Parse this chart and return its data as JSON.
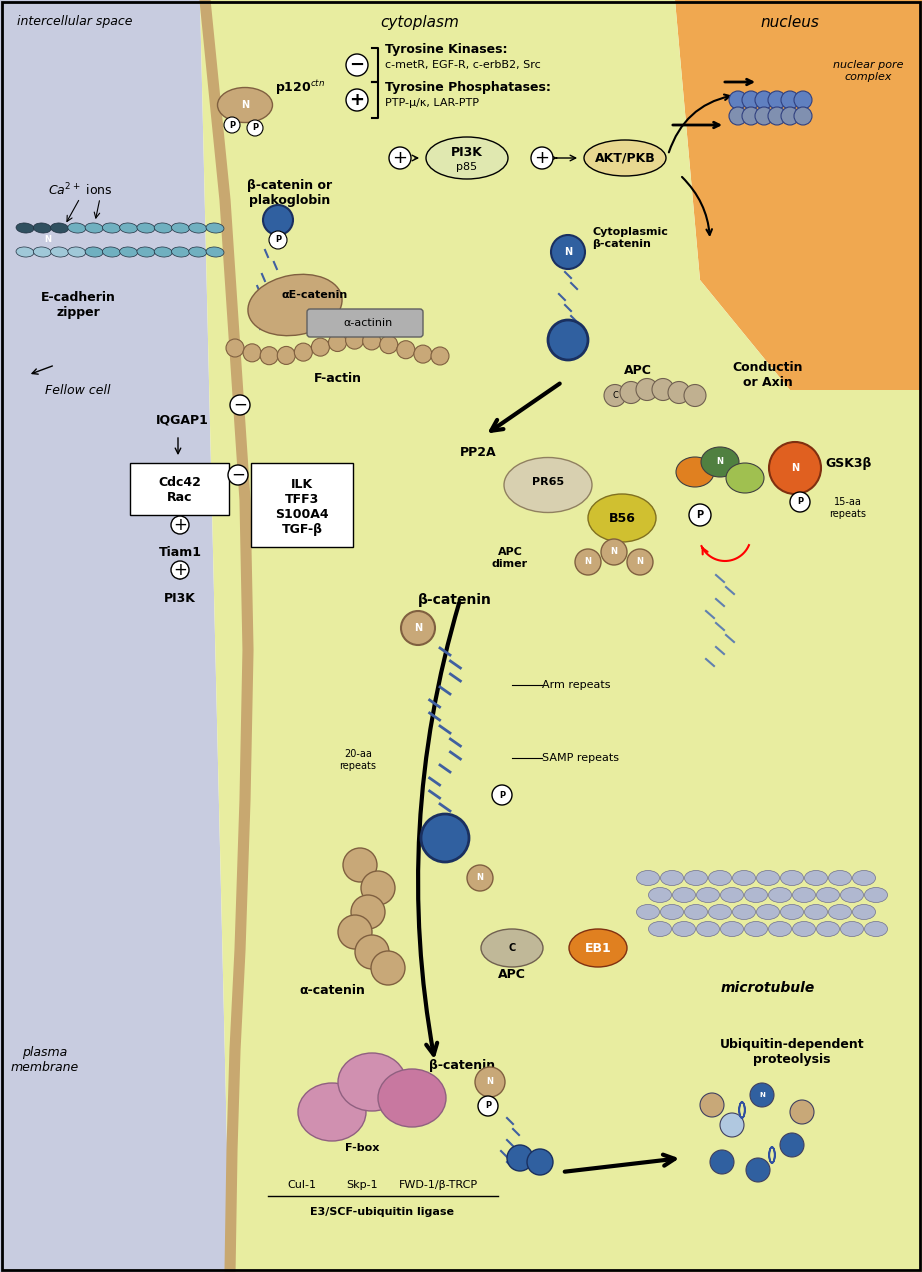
{
  "title": "",
  "bg_intercellular": "#c8cce0",
  "bg_cytoplasm": "#e8eda0",
  "bg_nucleus": "#f0a850",
  "bg_plasma_membrane": "#c8a870",
  "cell_border_color": "#c8a870",
  "text_color": "#000000",
  "labels": {
    "intercellular_space": "intercellular space",
    "cytoplasm": "cytoplasm",
    "nucleus": "nucleus",
    "nuclear_pore": "nuclear pore\ncomplex",
    "ca_ions": "Ca2+ ions",
    "ecadherin_zipper": "E-cadherin\nzipper",
    "fellow_cell": "Fellow cell",
    "p120": "p120ctn",
    "tyrosine_kinases": "Tyrosine Kinases:",
    "tk_list": "c-metR, EGF-R, c-erbB2, Src",
    "tyrosine_phosphatases": "Tyrosine Phosphatases:",
    "tp_list": "PTP-μ/κ, LAR-PTP",
    "pi3k": "PI3K\np85",
    "akt": "AKT/PKB",
    "beta_catenin_or_plako": "β-catenin or\nplakoglobin",
    "alpha_e_catenin": "αE-catenin",
    "alpha_actinin": "α-actinin",
    "f_actin": "F-actin",
    "iqgap1": "IQGAP1",
    "cdc42_rac": "Cdc42\nRac",
    "tiam1": "Tiam1",
    "pi3k_bottom": "PI3K",
    "ilk_group": "ILK\nTFF3\nS100A4\nTGF-β",
    "cytoplasmic_beta": "Cytoplasmic\nβ-catenin",
    "apc_top": "APC",
    "conductin": "Conductin\nor Axin",
    "pp2a": "PP2A",
    "pr65": "PR65",
    "b56": "B56",
    "apc_dimer": "APC\ndimer",
    "gsk3b": "GSK3β",
    "15aa": "15-aa\nrepeats",
    "beta_catenin_mid": "β-catenin",
    "arm_repeats": "Arm repeats",
    "samp_repeats": "SAMP repeats",
    "20aa": "20-aa\nrepeats",
    "alpha_catenin": "α-catenin",
    "apc_bottom": "APC",
    "eb1": "EB1",
    "microtubule": "microtubule",
    "fbox": "F-box",
    "beta_catenin_bottom": "β-catenin",
    "cul1": "Cul-1",
    "skp1": "Skp-1",
    "fwd1": "FWD-1/β-TRCP",
    "e3scf": "E3/SCF-ubiquitin ligase",
    "ubiquitin": "Ubiquitin-dependent\nproteolysis",
    "plasma_membrane": "plasma\nmembrane"
  },
  "colors": {
    "blue_ball": "#3060a0",
    "light_blue_ball": "#80a8d0",
    "tan_ball": "#c8a878",
    "orange_blob": "#e08020",
    "green_blob": "#508040",
    "pink_blob": "#d090b0",
    "gray_blob": "#909090",
    "yellow_blob": "#d0c040",
    "ecadherin_color": "#70b0c0",
    "dark_ecadherin": "#305060",
    "membrane_tan": "#c8a870",
    "apc_color": "#c0b090",
    "conductin_color": "#d0a860",
    "gsk3b_color": "#e06020",
    "microtubule_color": "#b0b8d0"
  }
}
